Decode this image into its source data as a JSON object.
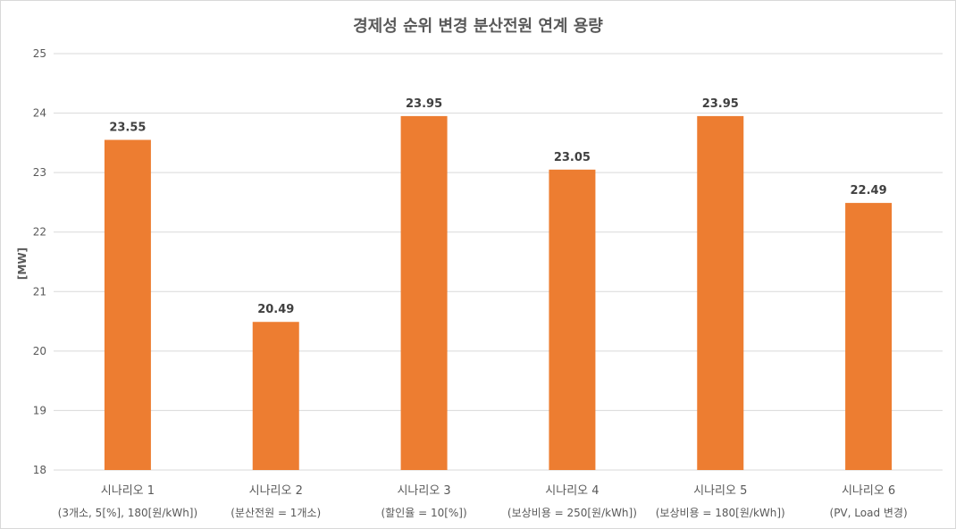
{
  "chart_data": {
    "type": "bar",
    "title": "경제성 순위 변경 분산전원 연계 용량",
    "ylabel": "[MW]",
    "xlabel": "",
    "ylim": [
      18,
      25
    ],
    "yticks": [
      "18",
      "19",
      "20",
      "21",
      "22",
      "23",
      "24",
      "25"
    ],
    "grid": true,
    "categories": [
      {
        "line1": "시나리오 1",
        "line2": "(3개소, 5[%], 180[원/kWh])"
      },
      {
        "line1": "시나리오 2",
        "line2": "(분산전원 = 1개소)"
      },
      {
        "line1": "시나리오 3",
        "line2": "(할인율 = 10[%])"
      },
      {
        "line1": "시나리오 4",
        "line2": "(보상비용 = 250[원/kWh])"
      },
      {
        "line1": "시나리오 5",
        "line2": "(보상비용 = 180[원/kWh])"
      },
      {
        "line1": "시나리오 6",
        "line2": "(PV, Load 변경)"
      }
    ],
    "values": [
      23.55,
      20.49,
      23.95,
      23.05,
      23.95,
      22.49
    ],
    "data_labels": [
      "23.55",
      "20.49",
      "23.95",
      "23.05",
      "23.95",
      "22.49"
    ],
    "bar_color": "#ed7d31",
    "grid_color": "#d9d9d9",
    "text_color": "#595959"
  }
}
